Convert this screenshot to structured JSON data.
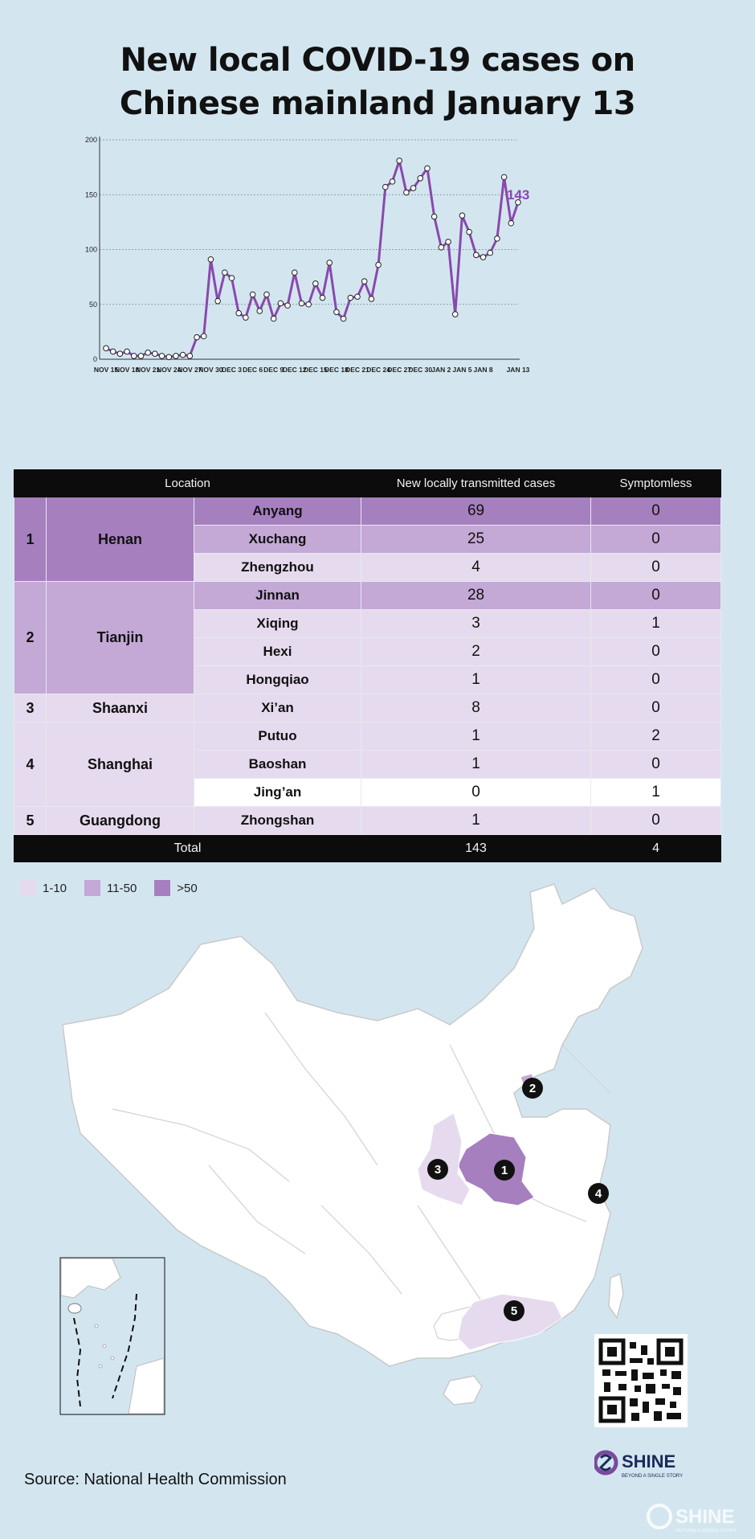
{
  "title_lines": [
    "New local COVID-19 cases on",
    "Chinese mainland  January 13"
  ],
  "chart_data": {
    "type": "line",
    "ylim": [
      0,
      200
    ],
    "yticks": [
      0,
      50,
      100,
      150,
      200
    ],
    "grid": true,
    "x_tick_labels": [
      "NOV 15",
      "NOV 18",
      "NOV 21",
      "NOV 24",
      "NOV 27",
      "NOV 30",
      "DEC 3",
      "DEC 6",
      "DEC 9",
      "DEC 12",
      "DEC 15",
      "DEC 18",
      "DEC 21",
      "DEC 24",
      "DEC 27",
      "DEC 30",
      "JAN 2",
      "JAN 5",
      "JAN 8",
      "JAN 13"
    ],
    "values": [
      10,
      7,
      5,
      7,
      3,
      3,
      6,
      5,
      3,
      2,
      3,
      4,
      3,
      20,
      21,
      91,
      53,
      79,
      74,
      42,
      38,
      59,
      44,
      59,
      37,
      51,
      49,
      79,
      51,
      50,
      69,
      56,
      88,
      43,
      37,
      56,
      57,
      71,
      55,
      86,
      157,
      162,
      181,
      152,
      156,
      165,
      174,
      130,
      102,
      107,
      41,
      131,
      116,
      95,
      93,
      97,
      110,
      166,
      124,
      143
    ],
    "last_value_label": "143",
    "line_color": "#8a48ad"
  },
  "table": {
    "headers": [
      "Location",
      "New locally transmitted cases",
      "Symptomless"
    ],
    "rows": [
      {
        "rank": "1",
        "province": "Henan",
        "rowspan": 3,
        "district": "Anyang",
        "cases": "69",
        "symptomless": "0"
      },
      {
        "district": "Xuchang",
        "cases": "25",
        "symptomless": "0"
      },
      {
        "district": "Zhengzhou",
        "cases": "4",
        "symptomless": "0"
      },
      {
        "rank": "2",
        "province": "Tianjin",
        "rowspan": 4,
        "district": "Jinnan",
        "cases": "28",
        "symptomless": "0"
      },
      {
        "district": "Xiqing",
        "cases": "3",
        "symptomless": "1"
      },
      {
        "district": "Hexi",
        "cases": "2",
        "symptomless": "0"
      },
      {
        "district": "Hongqiao",
        "cases": "1",
        "symptomless": "0"
      },
      {
        "rank": "3",
        "province": "Shaanxi",
        "rowspan": 1,
        "district": "Xi’an",
        "cases": "8",
        "symptomless": "0"
      },
      {
        "rank": "4",
        "province": "Shanghai",
        "rowspan": 3,
        "district": "Putuo",
        "cases": "1",
        "symptomless": "2"
      },
      {
        "district": "Baoshan",
        "cases": "1",
        "symptomless": "0"
      },
      {
        "district": "Jing’an",
        "cases": "0",
        "symptomless": "1"
      },
      {
        "rank": "5",
        "province": "Guangdong",
        "rowspan": 1,
        "district": "Zhongshan",
        "cases": "1",
        "symptomless": "0"
      }
    ],
    "total_label": "Total",
    "total_cases": "143",
    "total_symptomless": "4"
  },
  "legend": [
    {
      "label": "1-10",
      "color": "#e6dbee"
    },
    {
      "label": "11-50",
      "color": "#c4a8d6"
    },
    {
      "label": ">50",
      "color": "#a67fbf"
    }
  ],
  "map_markers": [
    "1",
    "2",
    "3",
    "4",
    "5"
  ],
  "source": "Source: National Health Commission",
  "logo": {
    "name": "SHINE",
    "tagline": "BEYOND A SINGLE STORY"
  }
}
